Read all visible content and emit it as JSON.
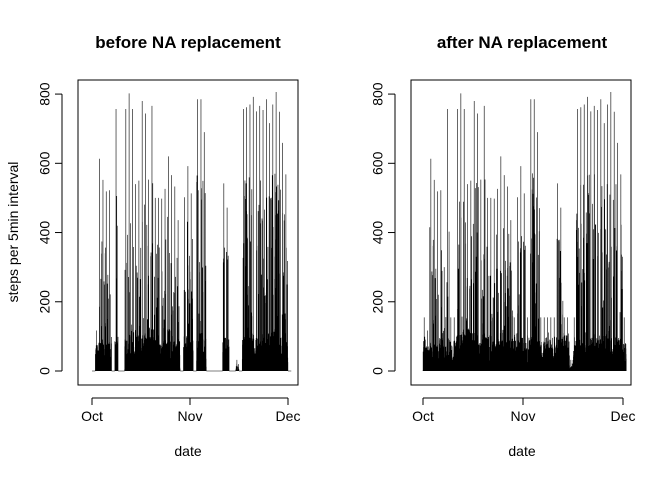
{
  "chart_data": [
    {
      "type": "line",
      "panel": "left",
      "title": "before NA replacement",
      "xlabel": "date",
      "ylabel": "steps per 5min interval",
      "x_ticks": [
        "Oct",
        "Nov",
        "Dec"
      ],
      "y_ticks": [
        0,
        200,
        400,
        600,
        800
      ],
      "ylim": [
        0,
        806
      ],
      "xlim": [
        "2012-10-01",
        "2012-11-30"
      ],
      "grid": false,
      "series": [
        {
          "color": "#000000",
          "daily_peak": [
            0,
            117,
            613,
            552,
            519,
            522,
            0,
            757,
            0,
            0,
            757,
            802,
            757,
            540,
            550,
            780,
            744,
            553,
            766,
            500,
            500,
            498,
            526,
            620,
            566,
            533,
            436,
            0,
            502,
            592,
            513,
            0,
            785,
            785,
            690,
            0,
            0,
            0,
            0,
            0,
            542,
            472,
            0,
            0,
            32,
            0,
            757,
            762,
            770,
            792,
            750,
            766,
            754,
            785,
            716,
            770,
            806,
            749,
            659,
            568,
            0
          ],
          "daily_level": [
            0,
            35,
            40,
            45,
            45,
            50,
            0,
            45,
            0,
            0,
            50,
            50,
            55,
            55,
            50,
            45,
            50,
            45,
            55,
            45,
            50,
            40,
            45,
            55,
            50,
            40,
            45,
            0,
            50,
            45,
            40,
            0,
            45,
            50,
            40,
            0,
            0,
            0,
            0,
            0,
            45,
            45,
            0,
            0,
            5,
            0,
            45,
            50,
            45,
            50,
            45,
            40,
            50,
            45,
            50,
            55,
            50,
            45,
            45,
            45,
            0
          ]
        }
      ]
    },
    {
      "type": "line",
      "panel": "right",
      "title": "after NA replacement",
      "xlabel": "date",
      "ylabel": "",
      "x_ticks": [
        "Oct",
        "Nov",
        "Dec"
      ],
      "y_ticks": [
        0,
        200,
        400,
        600,
        800
      ],
      "ylim": [
        0,
        806
      ],
      "xlim": [
        "2012-10-01",
        "2012-11-30"
      ],
      "grid": false,
      "series": [
        {
          "color": "#000000",
          "daily_peak": [
            155,
            117,
            613,
            552,
            519,
            522,
            300,
            757,
            155,
            155,
            757,
            802,
            757,
            540,
            550,
            780,
            744,
            553,
            766,
            500,
            500,
            498,
            526,
            620,
            566,
            533,
            436,
            155,
            502,
            592,
            513,
            155,
            785,
            785,
            690,
            155,
            155,
            155,
            155,
            155,
            542,
            472,
            155,
            155,
            32,
            155,
            757,
            762,
            770,
            792,
            750,
            766,
            754,
            785,
            716,
            770,
            806,
            749,
            659,
            568,
            155
          ],
          "daily_level": [
            40,
            35,
            40,
            45,
            45,
            50,
            40,
            45,
            40,
            40,
            50,
            50,
            55,
            55,
            50,
            45,
            50,
            45,
            55,
            45,
            50,
            40,
            45,
            55,
            50,
            40,
            45,
            40,
            50,
            45,
            40,
            40,
            45,
            50,
            40,
            40,
            40,
            40,
            40,
            40,
            45,
            45,
            40,
            40,
            5,
            40,
            45,
            50,
            45,
            50,
            45,
            40,
            50,
            45,
            50,
            55,
            50,
            45,
            45,
            45,
            40
          ]
        }
      ]
    }
  ]
}
